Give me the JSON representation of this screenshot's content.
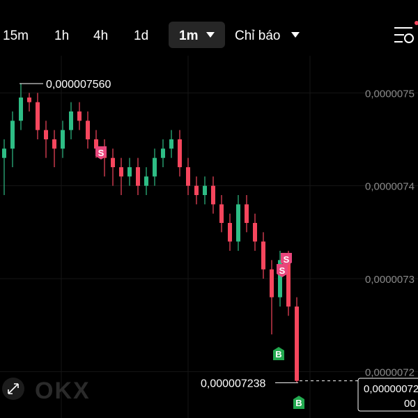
{
  "toolbar": {
    "intervals": [
      "15m",
      "1h",
      "4h",
      "1d"
    ],
    "selected": "1m",
    "indicators": "Chỉ báo"
  },
  "watermark": "OKX",
  "chart_data": {
    "type": "candlestick",
    "candles": [
      [
        7.48e-06,
        7.5e-06,
        7.44e-06,
        7.49e-06
      ],
      [
        7.49e-06,
        7.53e-06,
        7.47e-06,
        7.52e-06
      ],
      [
        7.52e-06,
        7.56e-06,
        7.51e-06,
        7.545e-06
      ],
      [
        7.545e-06,
        7.55e-06,
        7.53e-06,
        7.54e-06
      ],
      [
        7.54e-06,
        7.55e-06,
        7.5e-06,
        7.51e-06
      ],
      [
        7.51e-06,
        7.52e-06,
        7.48e-06,
        7.5e-06
      ],
      [
        7.5e-06,
        7.51e-06,
        7.47e-06,
        7.49e-06
      ],
      [
        7.49e-06,
        7.52e-06,
        7.48e-06,
        7.51e-06
      ],
      [
        7.51e-06,
        7.54e-06,
        7.5e-06,
        7.53e-06
      ],
      [
        7.53e-06,
        7.54e-06,
        7.51e-06,
        7.52e-06
      ],
      [
        7.52e-06,
        7.53e-06,
        7.49e-06,
        7.5e-06
      ],
      [
        7.5e-06,
        7.51e-06,
        7.48e-06,
        7.49e-06
      ],
      [
        7.49e-06,
        7.5e-06,
        7.46e-06,
        7.48e-06
      ],
      [
        7.48e-06,
        7.49e-06,
        7.45e-06,
        7.47e-06
      ],
      [
        7.47e-06,
        7.48e-06,
        7.44e-06,
        7.46e-06
      ],
      [
        7.46e-06,
        7.48e-06,
        7.45e-06,
        7.47e-06
      ],
      [
        7.47e-06,
        7.48e-06,
        7.44e-06,
        7.45e-06
      ],
      [
        7.45e-06,
        7.47e-06,
        7.44e-06,
        7.46e-06
      ],
      [
        7.46e-06,
        7.49e-06,
        7.45e-06,
        7.48e-06
      ],
      [
        7.48e-06,
        7.5e-06,
        7.47e-06,
        7.49e-06
      ],
      [
        7.49e-06,
        7.51e-06,
        7.48e-06,
        7.5e-06
      ],
      [
        7.5e-06,
        7.51e-06,
        7.46e-06,
        7.47e-06
      ],
      [
        7.47e-06,
        7.48e-06,
        7.44e-06,
        7.45e-06
      ],
      [
        7.45e-06,
        7.46e-06,
        7.43e-06,
        7.44e-06
      ],
      [
        7.44e-06,
        7.46e-06,
        7.43e-06,
        7.45e-06
      ],
      [
        7.45e-06,
        7.46e-06,
        7.42e-06,
        7.43e-06
      ],
      [
        7.43e-06,
        7.44e-06,
        7.4e-06,
        7.41e-06
      ],
      [
        7.41e-06,
        7.42e-06,
        7.38e-06,
        7.39e-06
      ],
      [
        7.39e-06,
        7.44e-06,
        7.38e-06,
        7.43e-06
      ],
      [
        7.43e-06,
        7.44e-06,
        7.4e-06,
        7.41e-06
      ],
      [
        7.41e-06,
        7.42e-06,
        7.38e-06,
        7.39e-06
      ],
      [
        7.39e-06,
        7.4e-06,
        7.35e-06,
        7.36e-06
      ],
      [
        7.36e-06,
        7.37e-06,
        7.29e-06,
        7.33e-06
      ],
      [
        7.33e-06,
        7.38e-06,
        7.32e-06,
        7.37e-06
      ],
      [
        7.37e-06,
        7.38e-06,
        7.31e-06,
        7.32e-06
      ],
      [
        7.32e-06,
        7.33e-06,
        7.238e-06,
        7.24e-06
      ]
    ],
    "ylim": [
      7.2e-06,
      7.59e-06
    ],
    "yticks": [
      {
        "value": 7.55e-06,
        "label": "0,0000075"
      },
      {
        "value": 7.45e-06,
        "label": "0,0000074"
      },
      {
        "value": 7.35e-06,
        "label": "0,0000073"
      },
      {
        "value": 7.25e-06,
        "label": "0,0000072"
      }
    ],
    "annotations": [
      {
        "value": 7.56e-06,
        "label": "0,000007560"
      },
      {
        "value": 7.238e-06,
        "label": "0,000007238"
      }
    ],
    "signals": [
      "S",
      "S",
      "S",
      "B",
      "B"
    ],
    "current_price": [
      "0,00000072",
      "00"
    ],
    "up_color": "#2ebd85",
    "down_color": "#f6465d"
  }
}
